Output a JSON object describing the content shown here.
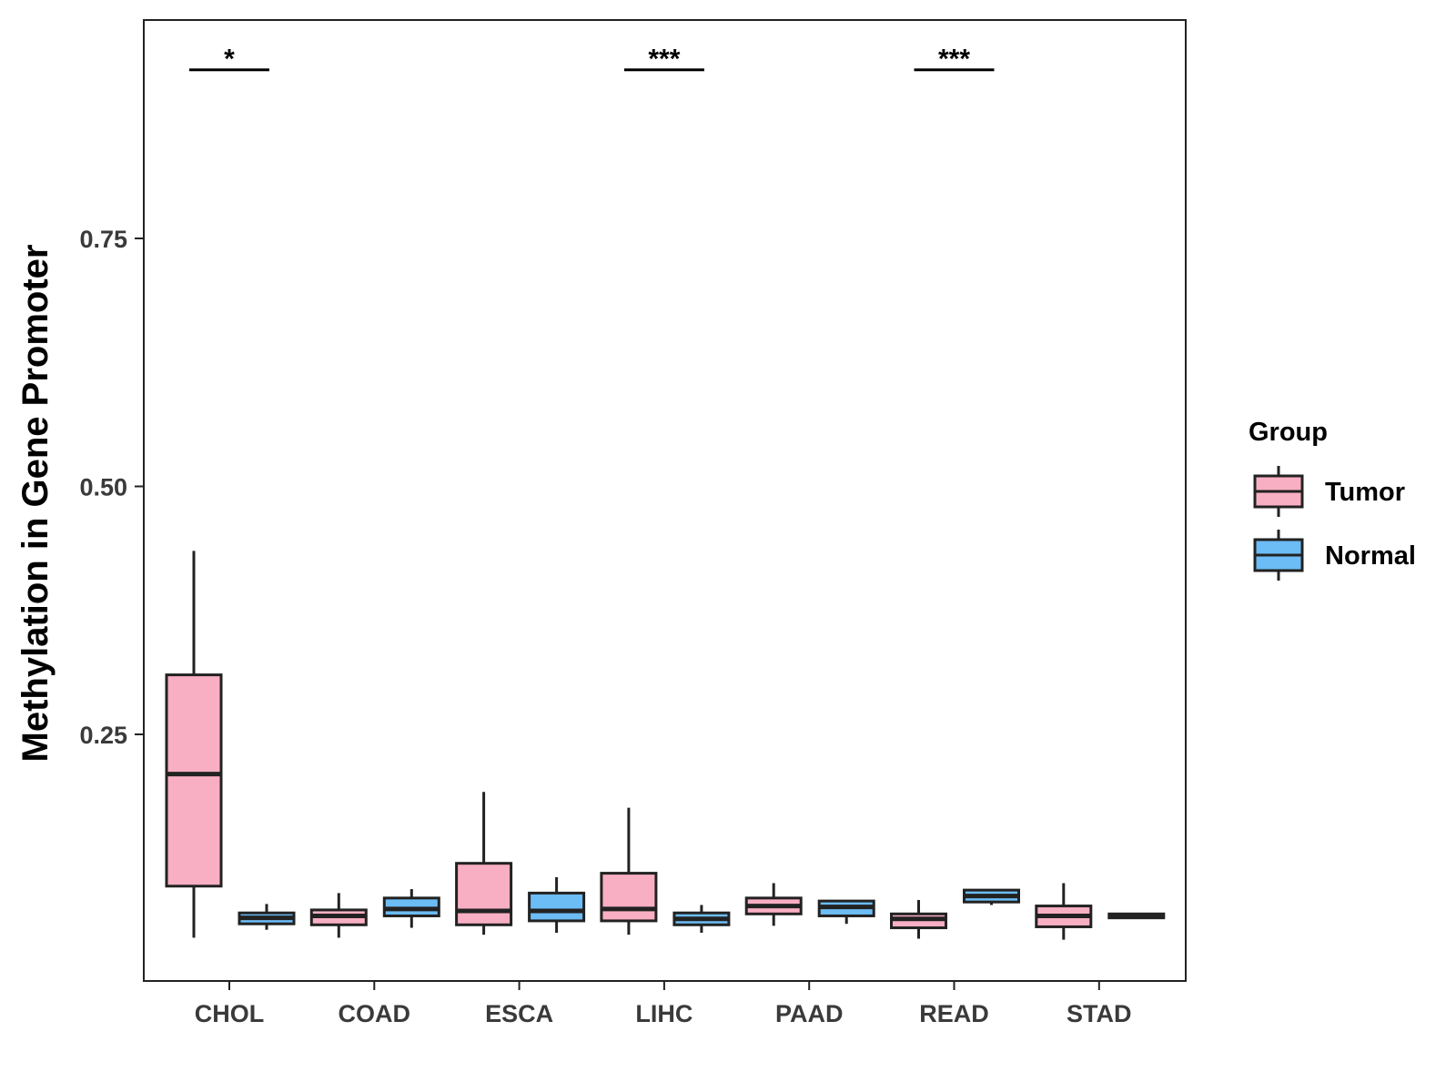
{
  "chart_data": {
    "type": "boxplot",
    "title": "",
    "xlabel": "",
    "ylabel": "Methylation in Gene Promoter",
    "ylim": [
      0.0,
      0.97
    ],
    "yticks": [
      0.25,
      0.5,
      0.75
    ],
    "ytick_labels": [
      "0.25",
      "0.50",
      "0.75"
    ],
    "categories": [
      "CHOL",
      "COAD",
      "ESCA",
      "LIHC",
      "PAAD",
      "READ",
      "STAD"
    ],
    "legend": {
      "title": "Group",
      "entries": [
        {
          "name": "Tumor",
          "color": "#f9afc3"
        },
        {
          "name": "Normal",
          "color": "#6cbcf5"
        }
      ]
    },
    "series": [
      {
        "name": "Tumor",
        "color": "#f9afc3",
        "boxes": [
          {
            "category": "CHOL",
            "min": 0.045,
            "q1": 0.097,
            "median": 0.21,
            "q3": 0.31,
            "max": 0.435
          },
          {
            "category": "COAD",
            "min": 0.045,
            "q1": 0.058,
            "median": 0.067,
            "q3": 0.073,
            "max": 0.09
          },
          {
            "category": "ESCA",
            "min": 0.048,
            "q1": 0.058,
            "median": 0.072,
            "q3": 0.12,
            "max": 0.192
          },
          {
            "category": "LIHC",
            "min": 0.048,
            "q1": 0.062,
            "median": 0.074,
            "q3": 0.11,
            "max": 0.176
          },
          {
            "category": "PAAD",
            "min": 0.057,
            "q1": 0.069,
            "median": 0.077,
            "q3": 0.085,
            "max": 0.1
          },
          {
            "category": "READ",
            "min": 0.044,
            "q1": 0.055,
            "median": 0.064,
            "q3": 0.069,
            "max": 0.083
          },
          {
            "category": "STAD",
            "min": 0.043,
            "q1": 0.056,
            "median": 0.067,
            "q3": 0.077,
            "max": 0.1
          }
        ]
      },
      {
        "name": "Normal",
        "color": "#6cbcf5",
        "boxes": [
          {
            "category": "CHOL",
            "min": 0.053,
            "q1": 0.059,
            "median": 0.065,
            "q3": 0.07,
            "max": 0.079
          },
          {
            "category": "COAD",
            "min": 0.055,
            "q1": 0.067,
            "median": 0.074,
            "q3": 0.085,
            "max": 0.094
          },
          {
            "category": "ESCA",
            "min": 0.05,
            "q1": 0.062,
            "median": 0.072,
            "q3": 0.09,
            "max": 0.106
          },
          {
            "category": "LIHC",
            "min": 0.05,
            "q1": 0.058,
            "median": 0.064,
            "q3": 0.07,
            "max": 0.078
          },
          {
            "category": "PAAD",
            "min": 0.059,
            "q1": 0.067,
            "median": 0.076,
            "q3": 0.082,
            "max": 0.083
          },
          {
            "category": "READ",
            "min": 0.078,
            "q1": 0.081,
            "median": 0.087,
            "q3": 0.093,
            "max": 0.094
          },
          {
            "category": "STAD",
            "min": 0.064,
            "q1": 0.065,
            "median": 0.067,
            "q3": 0.069,
            "max": 0.07
          }
        ]
      }
    ],
    "annotations": [
      {
        "category": "CHOL",
        "label": "*",
        "y": 0.92
      },
      {
        "category": "LIHC",
        "label": "***",
        "y": 0.92
      },
      {
        "category": "READ",
        "label": "***",
        "y": 0.92
      }
    ],
    "grid": false,
    "legend_position": "right"
  }
}
